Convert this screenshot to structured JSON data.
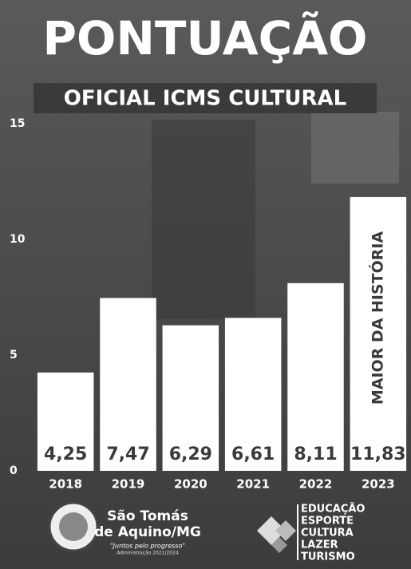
{
  "chart_data": {
    "type": "bar",
    "title": "PONTUAÇÃO",
    "subtitle": "OFICIAL ICMS CULTURAL",
    "annotation": "MAIOR DA HISTÓRIA",
    "categories": [
      "2018",
      "2019",
      "2020",
      "2021",
      "2022",
      "2023"
    ],
    "values": [
      4.25,
      7.47,
      6.29,
      6.61,
      8.11,
      11.83
    ],
    "value_labels": [
      "4,25",
      "7,47",
      "6,29",
      "6,61",
      "8,11",
      "11,83"
    ],
    "color": "#ffffff",
    "ylim": [
      0,
      15
    ],
    "yticks": [
      0,
      5,
      10,
      15
    ],
    "grid": false
  },
  "footer": {
    "city_lines": [
      "São Tomás",
      "de Aquino/MG"
    ],
    "slogan": "\"Juntos pelo progresso\"",
    "administration": "Administração 2021/2024",
    "departments": [
      "EDUCAÇÃO",
      "ESPORTE",
      "CULTURA",
      "LAZER",
      "TURISMO"
    ]
  }
}
